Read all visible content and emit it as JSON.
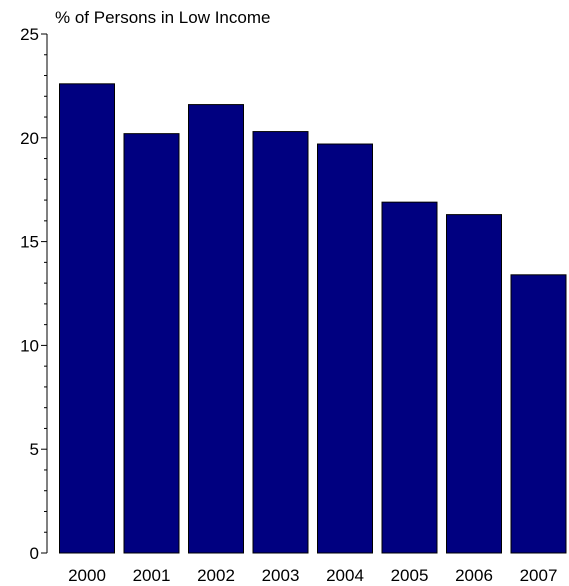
{
  "chart_data": {
    "type": "bar",
    "title": "% of Persons in Low Income",
    "xlabel": "",
    "ylabel": "",
    "categories": [
      "2000",
      "2001",
      "2002",
      "2003",
      "2004",
      "2005",
      "2006",
      "2007"
    ],
    "values": [
      22.6,
      20.2,
      21.6,
      20.3,
      19.7,
      16.9,
      16.3,
      13.4
    ],
    "ylim": [
      0,
      25
    ],
    "yticks": [
      "0",
      "5",
      "10",
      "15",
      "20",
      "25"
    ],
    "grid": false,
    "legend": "none",
    "bar_color": "#000080",
    "bar_edge_color": "#000000"
  }
}
